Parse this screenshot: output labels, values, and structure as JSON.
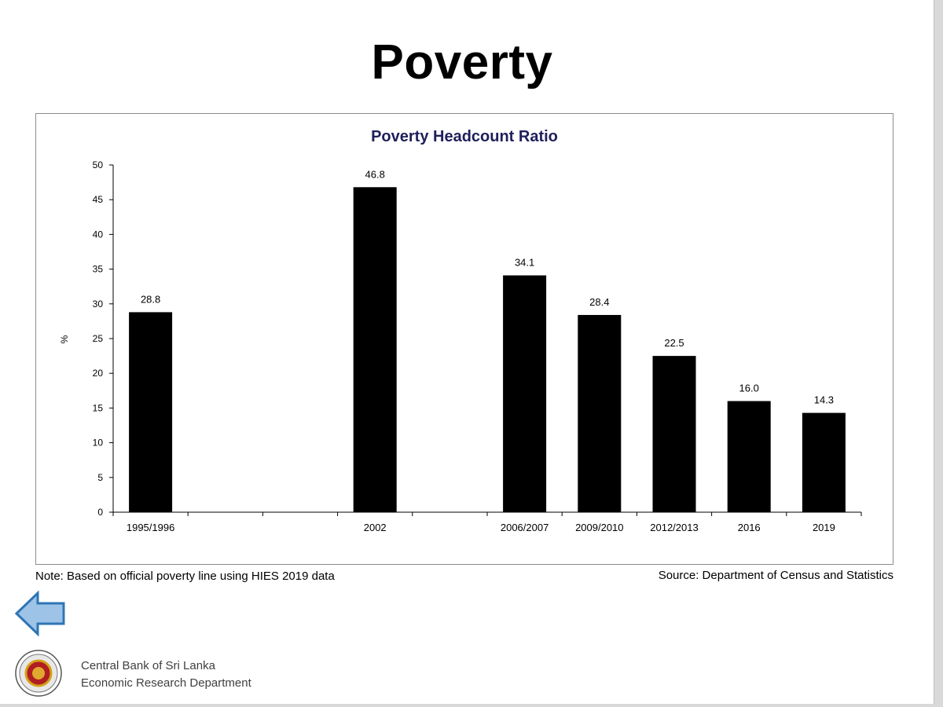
{
  "slide": {
    "title": "Poverty",
    "note": "Note: Based on official poverty line using HIES 2019 data",
    "source": "Source: Department of Census and Statistics",
    "org_line1": "Central Bank of Sri Lanka",
    "org_line2": "Economic Research Department",
    "icons": {
      "back": "left-arrow-icon",
      "logo": "central-bank-seal-logo"
    },
    "colors": {
      "bar": "#000000",
      "chart_title": "#1f1f5c",
      "back_arrow_fill": "#9dc3e6",
      "back_arrow_stroke": "#2e75b6"
    }
  },
  "chart_data": {
    "type": "bar",
    "title": "Poverty Headcount Ratio",
    "ylabel": "%",
    "xlabel": "",
    "ylim": [
      0,
      50
    ],
    "y_ticks": [
      0,
      5,
      10,
      15,
      20,
      25,
      30,
      35,
      40,
      45,
      50
    ],
    "grid": false,
    "legend": "none",
    "x_slots": [
      "1995/1996",
      "",
      "",
      "2002",
      "",
      "2006/2007",
      "2009/2010",
      "2012/2013",
      "2016",
      "2019"
    ],
    "categories": [
      "1995/1996",
      "2002",
      "2006/2007",
      "2009/2010",
      "2012/2013",
      "2016",
      "2019"
    ],
    "values": [
      28.8,
      46.8,
      34.1,
      28.4,
      22.5,
      16.0,
      14.3
    ],
    "data_labels": [
      "28.8",
      "46.8",
      "34.1",
      "28.4",
      "22.5",
      "16.0",
      "14.3"
    ]
  }
}
